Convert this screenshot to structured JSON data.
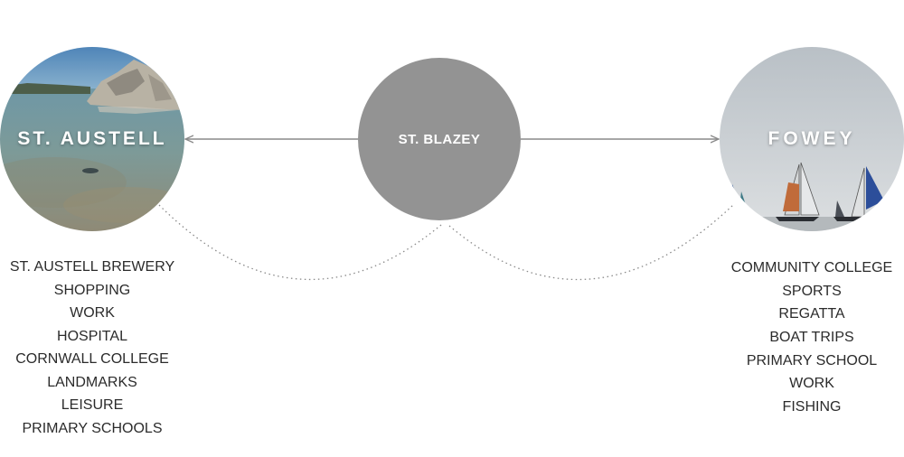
{
  "nodes": {
    "left": {
      "label": "ST.  AUSTELL"
    },
    "center": {
      "label": "ST. BLAZEY"
    },
    "right": {
      "label": "FOWEY"
    }
  },
  "austell_items": [
    "ST. AUSTELL BREWERY",
    "SHOPPING",
    "WORK",
    "HOSPITAL",
    "CORNWALL COLLEGE",
    "LANDMARKS",
    "LEISURE",
    "PRIMARY SCHOOLS"
  ],
  "fowey_items": [
    "COMMUNITY COLLEGE",
    "SPORTS",
    "REGATTA",
    "BOAT TRIPS",
    "PRIMARY SCHOOL",
    "WORK",
    "FISHING"
  ],
  "colors": {
    "center_node": "#939393",
    "arrow": "#8a8a8a",
    "dotted_link": "#8a8a8a",
    "list_text": "#2b2b2b"
  },
  "images": {
    "left": "coastal-rocks-photo",
    "right": "sailing-regatta-photo"
  }
}
